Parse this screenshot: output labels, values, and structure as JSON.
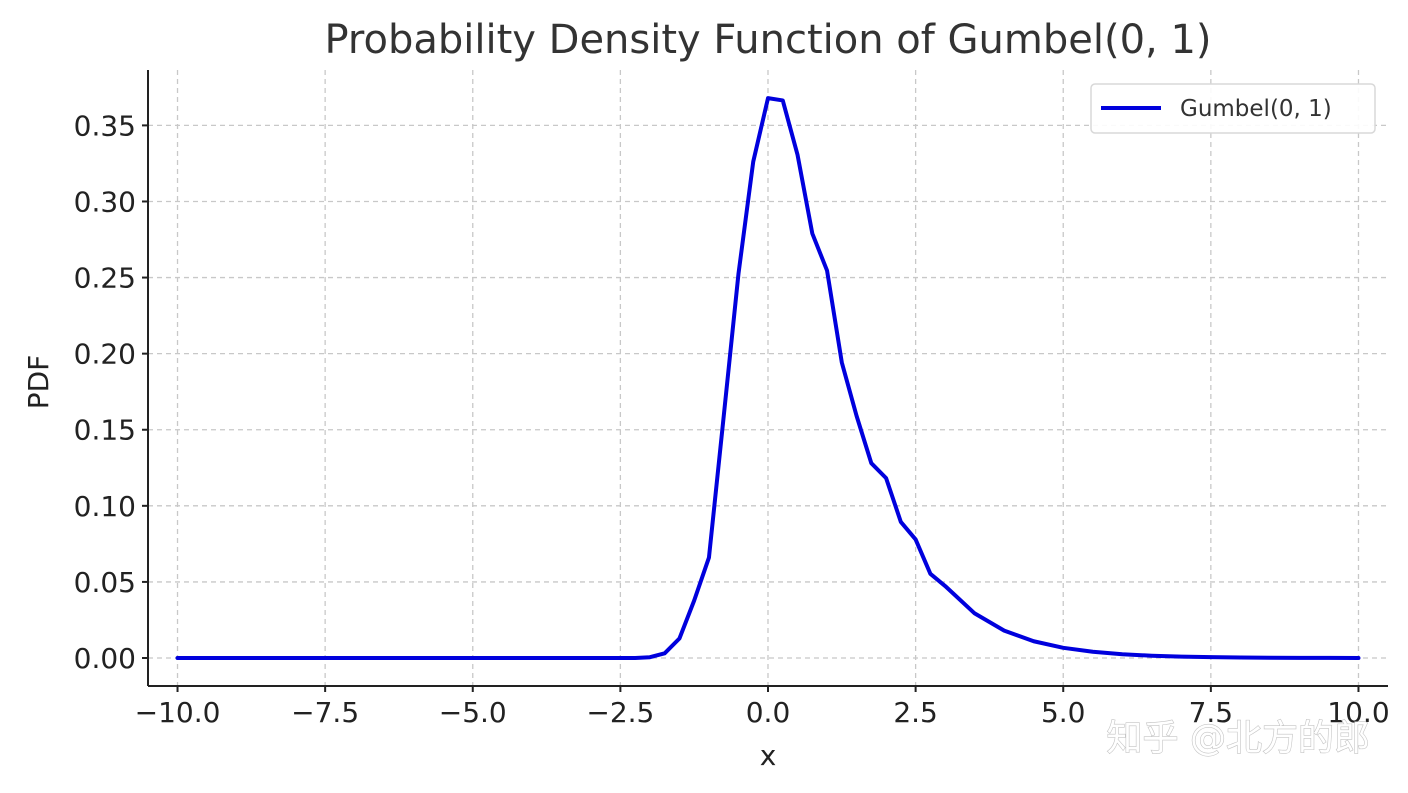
{
  "chart_data": {
    "type": "line",
    "title": "Probability Density Function of Gumbel(0, 1)",
    "xlabel": "x",
    "ylabel": "PDF",
    "xlim": [
      -10.5,
      10.5
    ],
    "ylim": [
      -0.0184,
      0.3864
    ],
    "x_ticks": [
      -10.0,
      -7.5,
      -5.0,
      -2.5,
      0.0,
      2.5,
      5.0,
      7.5,
      10.0
    ],
    "x_tick_labels": [
      "−10.0",
      "−7.5",
      "−5.0",
      "−2.5",
      "0.0",
      "2.5",
      "5.0",
      "7.5",
      "10.0"
    ],
    "y_ticks": [
      0.0,
      0.05,
      0.1,
      0.15,
      0.2,
      0.25,
      0.3,
      0.35
    ],
    "y_tick_labels": [
      "0.00",
      "0.05",
      "0.10",
      "0.15",
      "0.20",
      "0.25",
      "0.30",
      "0.35"
    ],
    "grid": true,
    "legend_position": "top-right",
    "series": [
      {
        "name": "Gumbel(0, 1)",
        "color": "#0000dd",
        "x": [
          -10.0,
          -9.0,
          -8.0,
          -7.0,
          -6.0,
          -5.0,
          -4.0,
          -3.0,
          -2.5,
          -2.25,
          -2.0,
          -1.75,
          -1.5,
          -1.25,
          -1.0,
          -0.75,
          -0.5,
          -0.25,
          0.0,
          0.25,
          0.5,
          0.75,
          1.0,
          1.25,
          1.5,
          1.75,
          2.0,
          2.25,
          2.5,
          2.75,
          3.0,
          3.5,
          4.0,
          4.5,
          5.0,
          5.5,
          6.0,
          6.5,
          7.0,
          7.5,
          8.0,
          8.5,
          9.0,
          9.5,
          10.0
        ],
        "y": [
          0.0,
          0.0,
          0.0,
          0.0,
          0.0,
          0.0,
          0.0,
          0.0,
          0.0,
          0.0,
          0.0005,
          0.0031,
          0.0128,
          0.0378,
          0.066,
          0.1588,
          0.2525,
          0.3262,
          0.3679,
          0.3664,
          0.3307,
          0.279,
          0.2546,
          0.1942,
          0.1591,
          0.128,
          0.1182,
          0.0894,
          0.0779,
          0.0553,
          0.0473,
          0.0293,
          0.018,
          0.011,
          0.0067,
          0.0041,
          0.0025,
          0.0015,
          0.0009,
          0.0006,
          0.0003,
          0.0002,
          0.0001,
          0.0001,
          0.0
        ]
      }
    ]
  },
  "watermark": {
    "text": "知乎 @北方的郎"
  }
}
